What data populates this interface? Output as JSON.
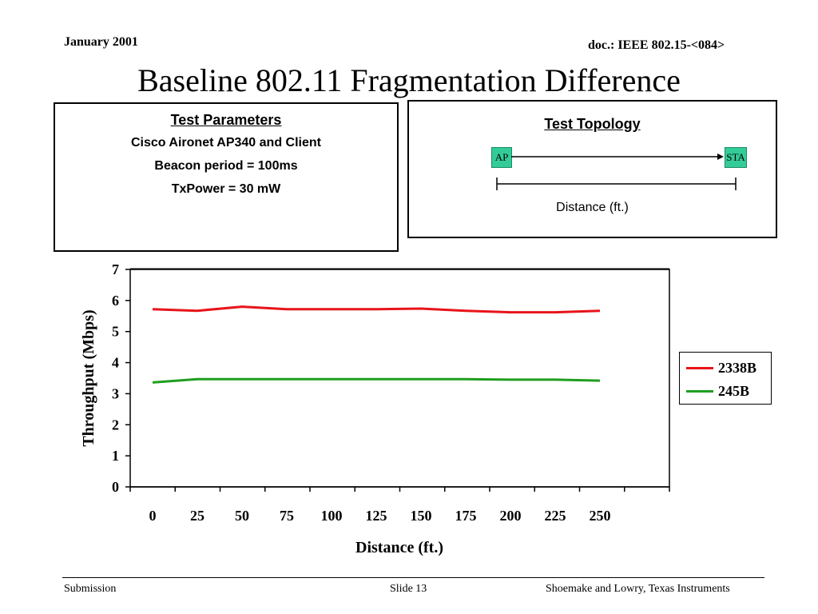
{
  "header": {
    "date": "January 2001",
    "doc": "doc.: IEEE 802.15-<084>",
    "title": "Baseline 802.11 Fragmentation Difference"
  },
  "params_box": {
    "heading": "Test Parameters",
    "lines": [
      "Cisco Aironet AP340 and Client",
      "Beacon period = 100ms",
      "TxPower = 30 mW"
    ]
  },
  "topology_box": {
    "heading": "Test Topology",
    "ap_label": "AP",
    "sta_label": "STA",
    "distance_label": "Distance (ft.)"
  },
  "footer": {
    "left": "Submission",
    "center": "Slide 13",
    "right": "Shoemake and Lowry, Texas Instruments"
  },
  "colors": {
    "series_2338B": "#e8141a",
    "series_245B": "#1f9e1f",
    "node": "#33cc99"
  },
  "chart_data": {
    "type": "line",
    "title": "",
    "xlabel": "Distance (ft.)",
    "ylabel": "Throughput (Mbps)",
    "ylim": [
      0,
      7
    ],
    "yticks": [
      0,
      1,
      2,
      3,
      4,
      5,
      6,
      7
    ],
    "categories": [
      "0",
      "25",
      "50",
      "75",
      "100",
      "125",
      "150",
      "175",
      "200",
      "225",
      "250"
    ],
    "grid": true,
    "legend_position": "right",
    "series": [
      {
        "name": "2338B",
        "color": "#e8141a",
        "values": [
          5.72,
          5.67,
          5.8,
          5.72,
          5.72,
          5.72,
          5.74,
          5.67,
          5.62,
          5.62,
          5.67
        ]
      },
      {
        "name": "245B",
        "color": "#1f9e1f",
        "values": [
          3.36,
          3.47,
          3.47,
          3.47,
          3.47,
          3.47,
          3.47,
          3.47,
          3.45,
          3.45,
          3.42
        ]
      }
    ]
  }
}
